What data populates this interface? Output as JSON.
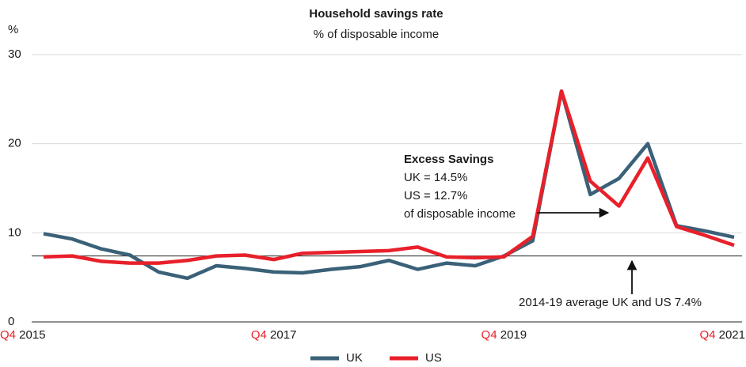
{
  "chart_data": {
    "type": "line",
    "title": "Household savings rate",
    "subtitle": "% of disposable income",
    "y_unit_label": "%",
    "categories": [
      "Q4 2015",
      null,
      null,
      null,
      null,
      null,
      null,
      null,
      "Q4 2017",
      null,
      null,
      null,
      null,
      null,
      null,
      null,
      "Q4 2019",
      null,
      null,
      null,
      null,
      null,
      null,
      null,
      "Q4 2021"
    ],
    "series": [
      {
        "name": "UK",
        "color": "#3a6178",
        "values": [
          9.9,
          9.3,
          8.2,
          7.5,
          5.6,
          4.9,
          6.3,
          6.0,
          5.6,
          5.5,
          5.9,
          6.2,
          6.9,
          5.9,
          6.6,
          6.3,
          7.4,
          9.1,
          25.9,
          14.3,
          16.1,
          20.0,
          10.8,
          10.2,
          9.5
        ]
      },
      {
        "name": "US",
        "color": "#e8202a",
        "values": [
          7.3,
          7.4,
          6.8,
          6.6,
          6.6,
          6.9,
          7.4,
          7.5,
          7.0,
          7.7,
          7.8,
          7.9,
          8.0,
          8.4,
          7.3,
          7.2,
          7.3,
          9.6,
          25.9,
          15.8,
          13.0,
          18.4,
          10.7,
          9.7,
          8.6
        ]
      }
    ],
    "ylim": [
      0,
      30
    ],
    "yticks": [
      0,
      10,
      20,
      30
    ],
    "grid": true,
    "average_line": {
      "value": 7.4,
      "label": "2014-19 average UK and US  7.4%"
    },
    "annotation": {
      "title": "Excess Savings",
      "lines": [
        "UK = 14.5%",
        "US = 12.7%",
        "of disposable income"
      ]
    },
    "legend_position": "bottom"
  }
}
